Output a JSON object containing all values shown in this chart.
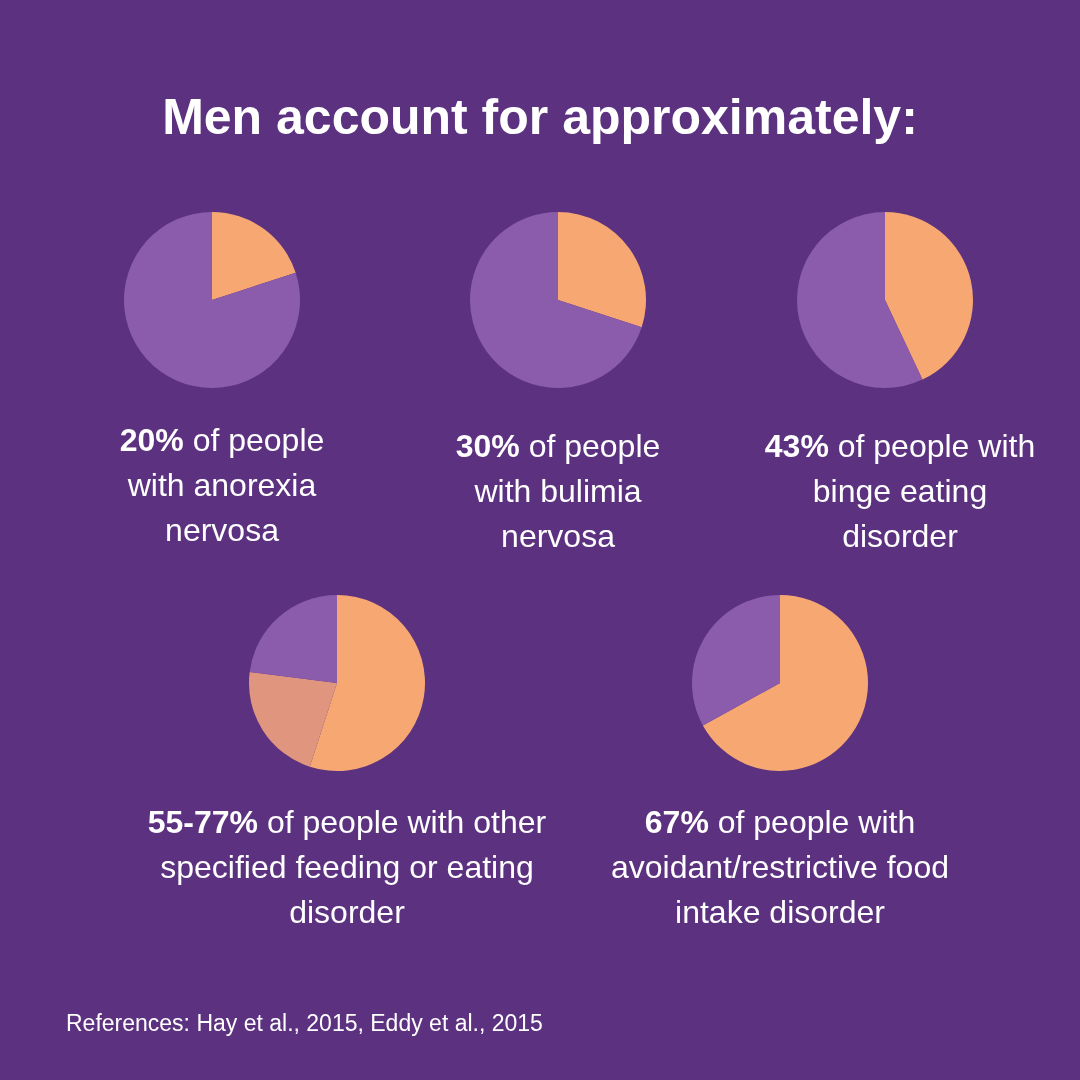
{
  "chart_data": [
    {
      "type": "pie",
      "title": "Men account for approximately:",
      "categories": [
        null,
        null
      ],
      "values": [
        20,
        80
      ],
      "colors": [
        "#f7a872",
        "#8b5cab"
      ],
      "subtitle": "20% of people with anorexia nervosa"
    },
    {
      "type": "pie",
      "categories": [
        null,
        null
      ],
      "values": [
        30,
        70
      ],
      "colors": [
        "#f7a872",
        "#8b5cab"
      ],
      "subtitle": "30% of people with bulimia nervosa"
    },
    {
      "type": "pie",
      "categories": [
        null,
        null
      ],
      "values": [
        43,
        57
      ],
      "colors": [
        "#f7a872",
        "#8b5cab"
      ],
      "subtitle": "43% of people with binge eating disorder"
    },
    {
      "type": "pie",
      "categories": [
        null,
        null,
        null
      ],
      "values": [
        55,
        22,
        23
      ],
      "colors": [
        "#f7a872",
        "#e0967e",
        "#8b5cab"
      ],
      "subtitle": "55-77% of people with other specified feeding or eating disorder"
    },
    {
      "type": "pie",
      "categories": [
        null,
        null
      ],
      "values": [
        67,
        33
      ],
      "colors": [
        "#f7a872",
        "#8b5cab"
      ],
      "subtitle": "67% of people with avoidant/restrictive food intake disorder",
      "annotations": [
        "References: Hay et al., 2015, Eddy et al., 2015"
      ]
    }
  ]
}
